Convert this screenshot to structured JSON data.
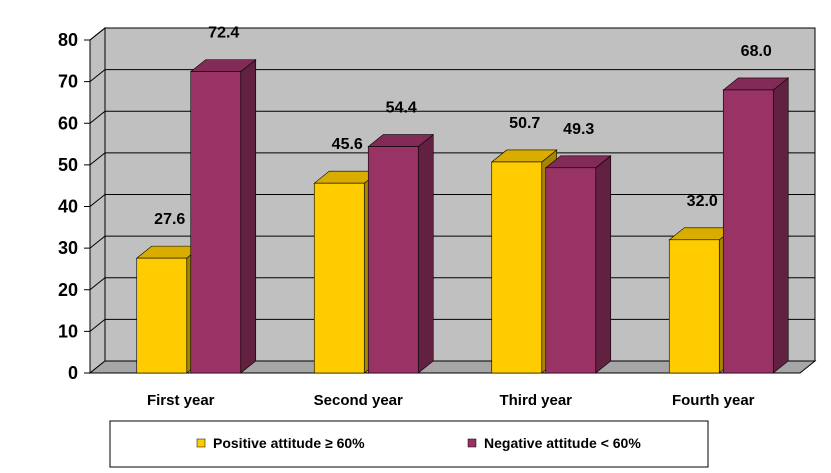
{
  "chart_data": {
    "type": "bar",
    "categories": [
      "First year",
      "Second year",
      "Third year",
      "Fourth year"
    ],
    "series": [
      {
        "name": "Positive attitude ≥ 60%",
        "values": [
          27.6,
          45.6,
          50.7,
          32.0
        ],
        "color": "#FFCC00"
      },
      {
        "name": "Negative attitude < 60%",
        "values": [
          72.4,
          54.4,
          49.3,
          68.0
        ],
        "color": "#993366"
      }
    ],
    "data_labels": [
      [
        "27.6",
        "45.6",
        "50.7",
        "32.0"
      ],
      [
        "72.4",
        "54.4",
        "49.3",
        "68.0"
      ]
    ],
    "y_ticks": [
      "0",
      "10",
      "20",
      "30",
      "40",
      "50",
      "60",
      "70",
      "80"
    ],
    "ylim": [
      0,
      80
    ],
    "grid": true,
    "legend_position": "bottom",
    "title": "",
    "xlabel": "",
    "ylabel": "",
    "colors": {
      "wall": "#C0C0C0",
      "floor": "#A6A6A6",
      "gridline": "#000000"
    }
  }
}
